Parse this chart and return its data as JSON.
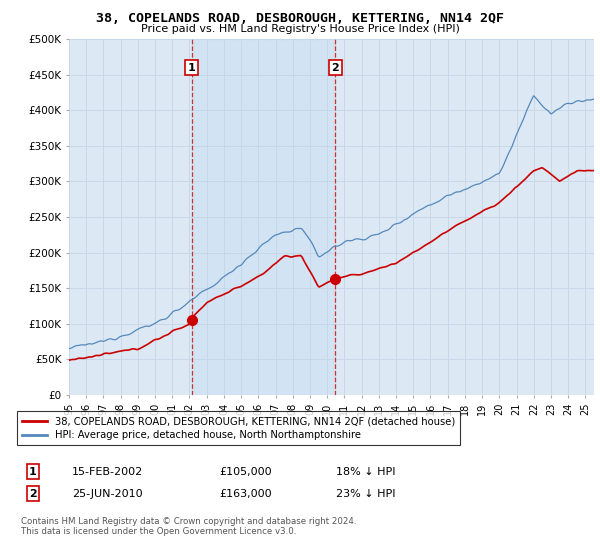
{
  "title": "38, COPELANDS ROAD, DESBOROUGH, KETTERING, NN14 2QF",
  "subtitle": "Price paid vs. HM Land Registry's House Price Index (HPI)",
  "ylim": [
    0,
    500000
  ],
  "yticks": [
    0,
    50000,
    100000,
    150000,
    200000,
    250000,
    300000,
    350000,
    400000,
    450000,
    500000
  ],
  "ytick_labels": [
    "£0",
    "£50K",
    "£100K",
    "£150K",
    "£200K",
    "£250K",
    "£300K",
    "£350K",
    "£400K",
    "£450K",
    "£500K"
  ],
  "background_color": "#ffffff",
  "plot_bg_color": "#dce9f5",
  "grid_color": "#c8d8e8",
  "shade_color": "#c0d8f0",
  "red_line_color": "#cc0000",
  "blue_line_color": "#5588bb",
  "transaction1_x": 2002.12,
  "transaction1_y": 105000,
  "transaction2_x": 2010.48,
  "transaction2_y": 163000,
  "legend_red_label": "38, COPELANDS ROAD, DESBOROUGH, KETTERING, NN14 2QF (detached house)",
  "legend_blue_label": "HPI: Average price, detached house, North Northamptonshire",
  "footer_line1": "Contains HM Land Registry data © Crown copyright and database right 2024.",
  "footer_line2": "This data is licensed under the Open Government Licence v3.0.",
  "table_row1": [
    "1",
    "15-FEB-2002",
    "£105,000",
    "18% ↓ HPI"
  ],
  "table_row2": [
    "2",
    "25-JUN-2010",
    "£163,000",
    "23% ↓ HPI"
  ],
  "xmin": 1995,
  "xmax": 2025.5
}
